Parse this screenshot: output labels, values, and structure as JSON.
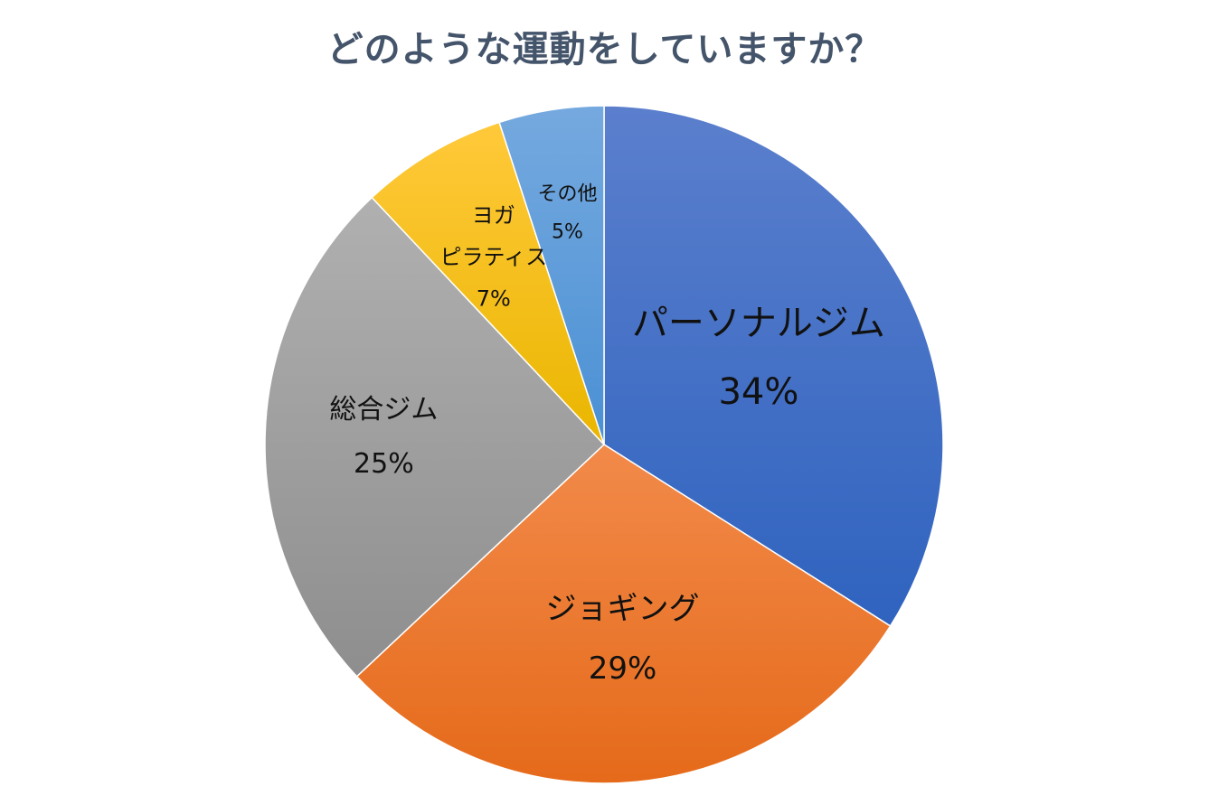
{
  "chart_data": {
    "type": "pie",
    "title": "どのような運動をしていますか？",
    "categories": [
      "パーソナルジム",
      "ジョギング",
      "総合ジム",
      "ヨガ ピラティス",
      "その他"
    ],
    "values": [
      34,
      29,
      25,
      7,
      5
    ],
    "labels": [
      {
        "lines": [
          "パーソナルジム"
        ],
        "value": "34%"
      },
      {
        "lines": [
          "ジョギング"
        ],
        "value": "29%"
      },
      {
        "lines": [
          "総合ジム"
        ],
        "value": "25%"
      },
      {
        "lines": [
          "ヨガ",
          "ピラティス"
        ],
        "value": "7%"
      },
      {
        "lines": [
          "その他"
        ],
        "value": "5%"
      }
    ],
    "colors": [
      [
        "#5b7fcd",
        "#2f63bf"
      ],
      [
        "#f28a4a",
        "#e56a1a"
      ],
      [
        "#b0b0b0",
        "#8e8e8e"
      ],
      [
        "#ffc93a",
        "#eab600"
      ],
      [
        "#75a9df",
        "#4a90d4"
      ]
    ],
    "start_angle": "12 o'clock",
    "direction": "clockwise",
    "legend": "none"
  }
}
